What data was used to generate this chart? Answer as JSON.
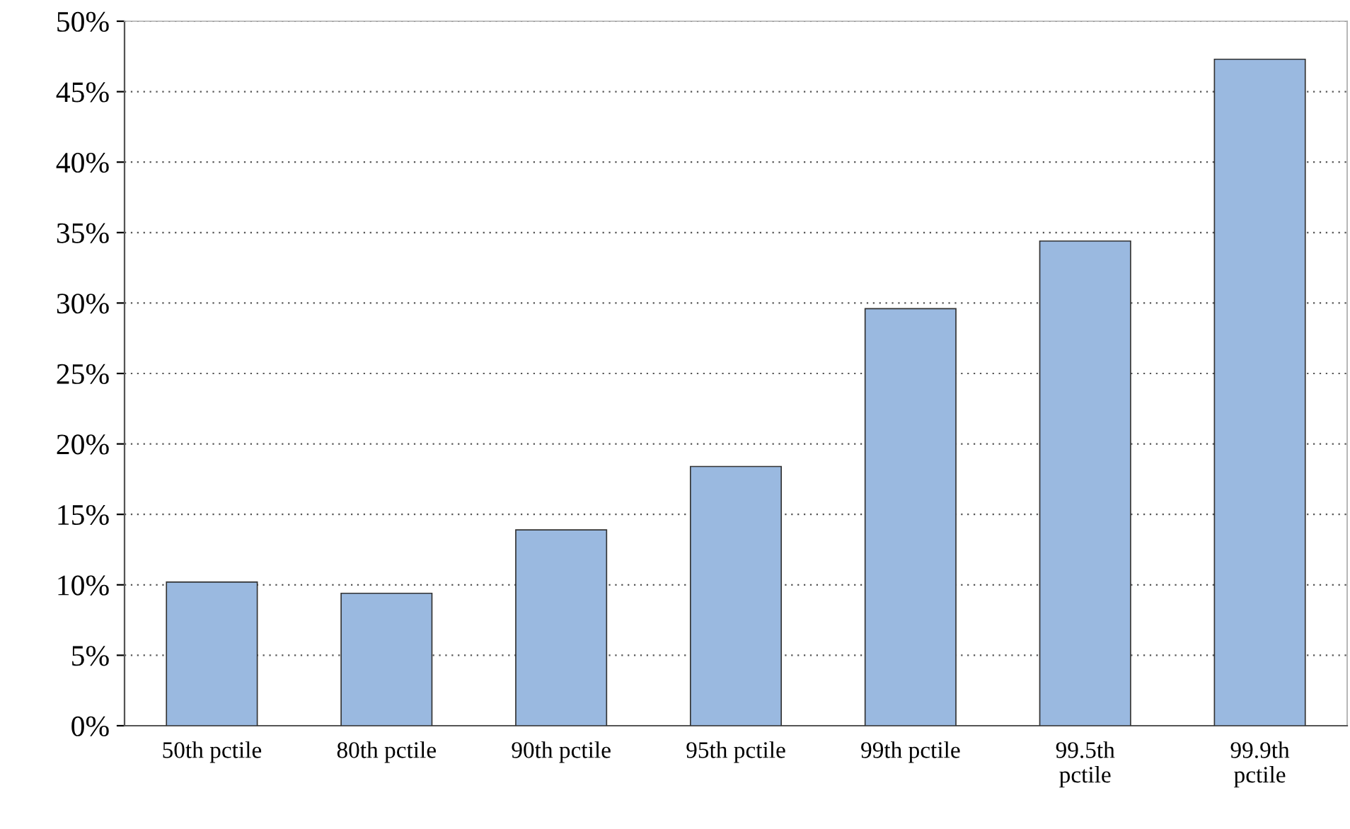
{
  "chart_data": {
    "type": "bar",
    "categories": [
      "50th pctile",
      "80th pctile",
      "90th pctile",
      "95th pctile",
      "99th pctile",
      "99.5th\npctile",
      "99.9th\npctile"
    ],
    "values": [
      10.2,
      9.4,
      13.9,
      18.4,
      29.6,
      34.4,
      47.3
    ],
    "color": "#9ab9e0",
    "ylim": [
      0,
      50
    ],
    "yticks": [
      {
        "value": 0,
        "label": "0%"
      },
      {
        "value": 5,
        "label": "5%"
      },
      {
        "value": 10,
        "label": "10%"
      },
      {
        "value": 15,
        "label": "15%"
      },
      {
        "value": 20,
        "label": "20%"
      },
      {
        "value": 25,
        "label": "25%"
      },
      {
        "value": 30,
        "label": "30%"
      },
      {
        "value": 35,
        "label": "35%"
      },
      {
        "value": 40,
        "label": "40%"
      },
      {
        "value": 45,
        "label": "45%"
      },
      {
        "value": 50,
        "label": "50%"
      }
    ],
    "grid": "y"
  }
}
